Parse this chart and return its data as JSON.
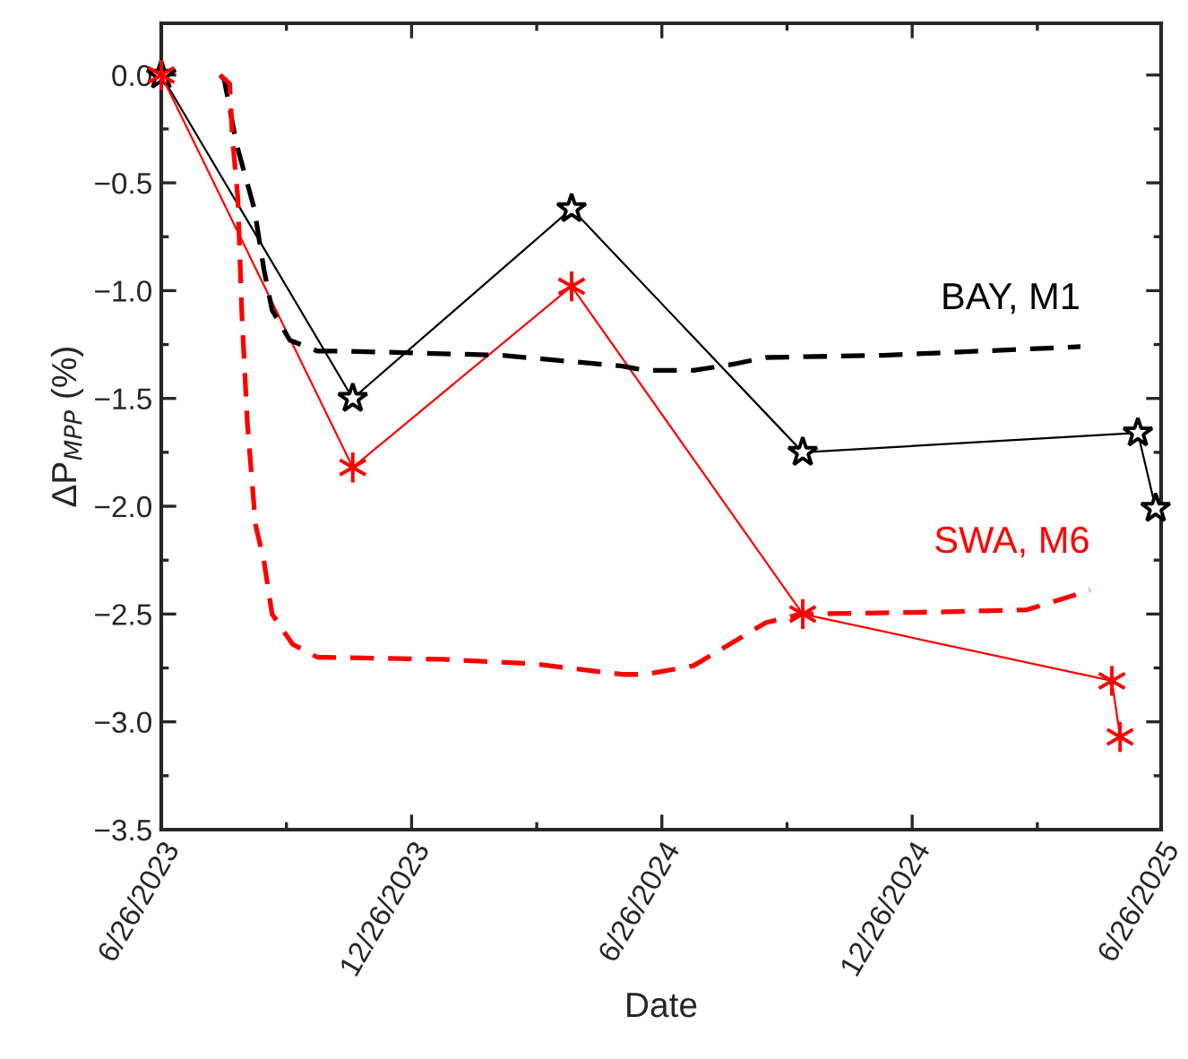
{
  "chart_data": {
    "type": "line",
    "xlabel": "Date",
    "ylabel": "ΔP$_{MPP}$ (%)",
    "xlim": [
      "2023-06-26",
      "2025-06-26"
    ],
    "xticks": [
      {
        "value": "2023-06-26",
        "label": "6/26/2023"
      },
      {
        "value": "2023-12-26",
        "label": "12/26/2023"
      },
      {
        "value": "2024-06-26",
        "label": "6/26/2024"
      },
      {
        "value": "2024-12-26",
        "label": "12/26/2024"
      },
      {
        "value": "2025-06-26",
        "label": "6/26/2025"
      }
    ],
    "ylim": [
      -3.5,
      0.24
    ],
    "yticks": [
      {
        "value": 0,
        "label": "0.0"
      },
      {
        "value": -0.5,
        "label": "−0.5"
      },
      {
        "value": -1,
        "label": "−1.0"
      },
      {
        "value": -1.5,
        "label": "−1.5"
      },
      {
        "value": -2,
        "label": "−2.0"
      },
      {
        "value": -2.5,
        "label": "−2.5"
      },
      {
        "value": -3,
        "label": "−3.0"
      },
      {
        "value": -3.5,
        "label": "−3.5"
      }
    ],
    "grid": false,
    "legend": false,
    "series": [
      {
        "color": "#000000",
        "marker": "star",
        "line_style": "solid",
        "x": [
          "2023-06-26",
          "2023-11-13",
          "2024-04-21",
          "2024-10-07",
          "2025-06-09",
          "2025-06-22"
        ],
        "values": [
          0,
          -1.5,
          -0.62,
          -1.75,
          -1.66,
          -2.01
        ]
      },
      {
        "color": "#ff0000",
        "marker": "cross",
        "line_style": "solid",
        "x": [
          "2023-06-26",
          "2023-11-13",
          "2024-04-21",
          "2024-10-07",
          "2025-05-21",
          "2025-05-27"
        ],
        "values": [
          0,
          -1.82,
          -0.98,
          -2.5,
          -2.81,
          -3.07
        ]
      },
      {
        "name": "BAY, M1",
        "color": "#000000",
        "marker": "none",
        "line_style": "dashed",
        "x": [
          "2023-08-08",
          "2023-08-11",
          "2023-08-20",
          "2023-09-02",
          "2023-09-09",
          "2023-09-15",
          "2023-09-28",
          "2023-10-18",
          "2023-11-04",
          "2024-03-01",
          "2024-05-28",
          "2024-06-14",
          "2024-07-19",
          "2024-08-18",
          "2024-09-10",
          "2024-12-05",
          "2025-04-28"
        ],
        "values": [
          0,
          -0.02,
          -0.32,
          -0.62,
          -0.9,
          -1.09,
          -1.23,
          -1.28,
          -1.28,
          -1.3,
          -1.35,
          -1.37,
          -1.37,
          -1.34,
          -1.31,
          -1.3,
          -1.26
        ]
      },
      {
        "name": "SWA, M6",
        "color": "#ff0000",
        "marker": "none",
        "line_style": "dashed",
        "x": [
          "2023-08-08",
          "2023-08-15",
          "2023-08-17",
          "2023-08-21",
          "2023-08-24",
          "2023-08-28",
          "2023-09-03",
          "2023-09-09",
          "2023-09-15",
          "2023-09-30",
          "2023-10-18",
          "2024-01-18",
          "2024-03-23",
          "2024-05-28",
          "2024-06-14",
          "2024-07-19",
          "2024-09-10",
          "2024-10-06",
          "2025-01-19",
          "2025-03-20",
          "2025-05-05"
        ],
        "values": [
          0,
          -0.04,
          -0.29,
          -0.57,
          -1.12,
          -1.62,
          -2.09,
          -2.25,
          -2.5,
          -2.64,
          -2.7,
          -2.71,
          -2.73,
          -2.78,
          -2.78,
          -2.74,
          -2.54,
          -2.5,
          -2.49,
          -2.48,
          -2.39
        ]
      }
    ]
  }
}
